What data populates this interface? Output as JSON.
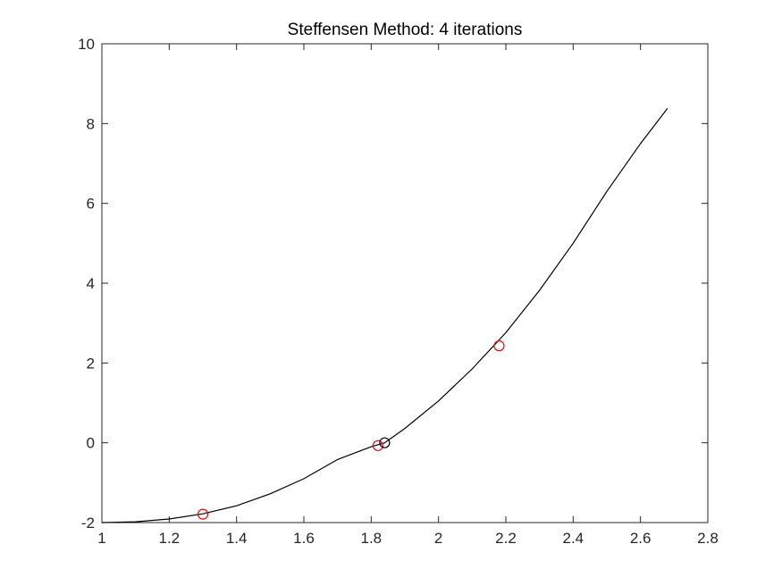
{
  "chart_data": {
    "type": "line",
    "title": "Steffensen Method: 4 iterations",
    "xlabel": "",
    "ylabel": "",
    "xlim": [
      1,
      2.8
    ],
    "ylim": [
      -2,
      10
    ],
    "xticks": [
      1,
      1.2,
      1.4,
      1.6,
      1.8,
      2,
      2.2,
      2.4,
      2.6,
      2.8
    ],
    "xtick_labels": [
      "1",
      "1.2",
      "1.4",
      "1.6",
      "1.8",
      "2",
      "2.2",
      "2.4",
      "2.6",
      "2.8"
    ],
    "yticks": [
      -2,
      0,
      2,
      4,
      6,
      8,
      10
    ],
    "ytick_labels": [
      "-2",
      "0",
      "2",
      "4",
      "6",
      "8",
      "10"
    ],
    "grid": false,
    "series": [
      {
        "kind": "curve",
        "color": "#000000",
        "x": [
          1.0,
          1.1,
          1.2,
          1.3,
          1.4,
          1.5,
          1.6,
          1.7,
          1.8,
          1.84,
          1.9,
          2.0,
          2.1,
          2.2,
          2.3,
          2.4,
          2.5,
          2.6,
          2.68
        ],
        "y": [
          -2.0,
          -1.98,
          -1.91,
          -1.78,
          -1.58,
          -1.28,
          -0.9,
          -0.42,
          -0.1,
          0.0,
          0.36,
          1.05,
          1.85,
          2.76,
          3.82,
          5.0,
          6.3,
          7.5,
          8.38
        ]
      },
      {
        "kind": "markers",
        "marker": "circle",
        "color": "#ff0000",
        "x": [
          1.3,
          1.82,
          2.18
        ],
        "y": [
          -1.79,
          -0.07,
          2.43
        ]
      },
      {
        "kind": "markers",
        "marker": "circle",
        "color": "#000000",
        "x": [
          1.84
        ],
        "y": [
          0.0
        ]
      }
    ]
  }
}
